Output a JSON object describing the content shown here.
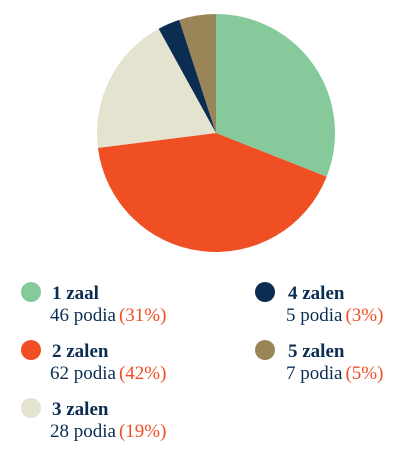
{
  "chart_data": {
    "type": "pie",
    "categories": [
      "1 zaal",
      "2 zalen",
      "3 zalen",
      "4 zalen",
      "5 zalen"
    ],
    "values": [
      31,
      42,
      19,
      3,
      5
    ],
    "value_labels": [
      "(31%)",
      "(42%)",
      "(19%)",
      "(3%)",
      "(5%)"
    ],
    "count_labels": [
      "46 podia",
      "62 podia",
      "28 podia",
      "5 podia",
      "7 podia"
    ],
    "colors": [
      "#86c99b",
      "#f04e23",
      "#e3e3cf",
      "#0b2d52",
      "#9a8558"
    ],
    "legend": "bottom"
  }
}
